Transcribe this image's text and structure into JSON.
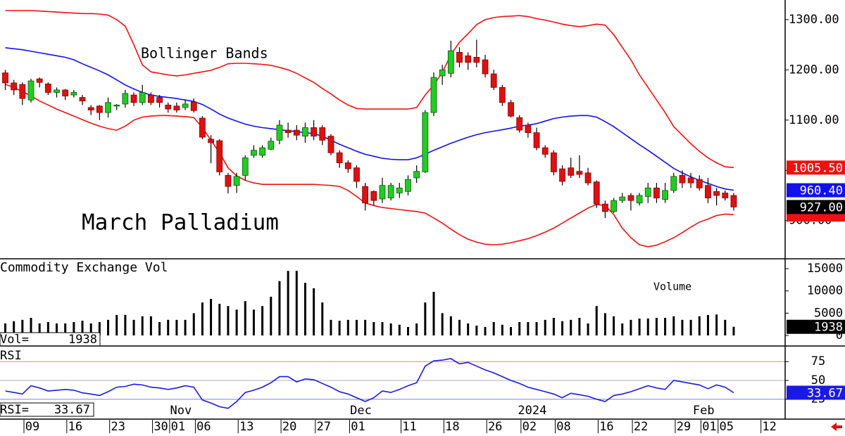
{
  "chart_data": [
    {
      "type": "candlestick",
      "title": "March Palladium",
      "annotation": "Bollinger Bands",
      "up_color": "#22cc22",
      "down_color": "#dd1111",
      "close_label": "927.00",
      "close_label_color": "#000000",
      "open": [
        1194,
        1174,
        1171,
        1140,
        1182,
        1172,
        1155,
        1160,
        1150,
        1145,
        1125,
        1128,
        1115,
        1130,
        1132,
        1150,
        1135,
        1150,
        1145,
        1130,
        1128,
        1125,
        1136,
        1104,
        1062,
        1059,
        990,
        970,
        990,
        1030,
        1030,
        1042,
        1060,
        1080,
        1080,
        1068,
        1085,
        1085,
        1068,
        1035,
        1015,
        1005,
        968,
        958,
        943,
        945,
        955,
        958,
        985,
        997,
        1115,
        1188,
        1193,
        1235,
        1228,
        1225,
        1220,
        1192,
        1165,
        1135,
        1105,
        1090,
        1075,
        1045,
        1035,
        1003,
        1005,
        998,
        995,
        977,
        933,
        918,
        940,
        950,
        935,
        948,
        965,
        942,
        960,
        990,
        985,
        982,
        970,
        958,
        955,
        950,
        null,
        null,
        null,
        null
      ],
      "high": [
        1200,
        1180,
        1175,
        1182,
        1185,
        1175,
        1165,
        1162,
        1160,
        1150,
        1130,
        1130,
        1145,
        1132,
        1160,
        1155,
        1170,
        1155,
        1150,
        1135,
        1135,
        1140,
        1143,
        1108,
        1070,
        1062,
        995,
        995,
        1030,
        1050,
        1050,
        1065,
        1100,
        1095,
        1090,
        1095,
        1100,
        1090,
        1072,
        1040,
        1020,
        1010,
        975,
        960,
        985,
        975,
        975,
        990,
        1010,
        1120,
        1195,
        1210,
        1258,
        1245,
        1235,
        1260,
        1230,
        1200,
        1170,
        1140,
        1110,
        1095,
        1085,
        1050,
        1040,
        1010,
        1025,
        1030,
        1005,
        980,
        940,
        945,
        955,
        955,
        955,
        975,
        975,
        975,
        995,
        1000,
        995,
        990,
        985,
        965,
        960,
        955,
        null,
        null,
        null,
        null
      ],
      "low": [
        1160,
        1150,
        1130,
        1135,
        1165,
        1150,
        1145,
        1140,
        1145,
        1130,
        1110,
        1100,
        1105,
        1120,
        1125,
        1128,
        1130,
        1130,
        1125,
        1115,
        1115,
        1120,
        1115,
        1062,
        1014,
        990,
        954,
        955,
        980,
        1025,
        1025,
        1040,
        1052,
        1065,
        1060,
        1055,
        1060,
        1050,
        1030,
        1005,
        995,
        965,
        920,
        930,
        935,
        940,
        945,
        950,
        975,
        995,
        1108,
        1170,
        1185,
        1205,
        1200,
        1205,
        1185,
        1160,
        1128,
        1105,
        1075,
        1065,
        1040,
        1025,
        990,
        970,
        985,
        985,
        970,
        925,
        905,
        915,
        935,
        920,
        930,
        935,
        935,
        935,
        955,
        965,
        965,
        960,
        935,
        930,
        940,
        920,
        null,
        null,
        null,
        null
      ],
      "close": [
        1174,
        1160,
        1143,
        1178,
        1175,
        1155,
        1160,
        1148,
        1155,
        1138,
        1120,
        1115,
        1135,
        1130,
        1153,
        1135,
        1155,
        1135,
        1135,
        1122,
        1120,
        1132,
        1119,
        1066,
        1055,
        997,
        968,
        988,
        1025,
        1040,
        1045,
        1058,
        1090,
        1075,
        1070,
        1085,
        1068,
        1060,
        1035,
        1015,
        1003,
        978,
        935,
        940,
        970,
        970,
        965,
        982,
        998,
        1115,
        1185,
        1200,
        1238,
        1215,
        1215,
        1215,
        1192,
        1165,
        1135,
        1108,
        1080,
        1075,
        1045,
        1032,
        997,
        978,
        990,
        992,
        975,
        933,
        918,
        940,
        947,
        940,
        950,
        965,
        945,
        960,
        988,
        975,
        975,
        965,
        945,
        950,
        945,
        927,
        null,
        null,
        null,
        null
      ],
      "bands": [
        {
          "color": "#ee1111",
          "value_label": "1005.50",
          "values": [
            1318,
            1318,
            1318,
            1318,
            1317,
            1316,
            1315,
            1314,
            1313,
            1312,
            1312,
            1311,
            1309,
            1300,
            1287,
            1250,
            1210,
            1196,
            1193,
            1190,
            1188,
            1190,
            1193,
            1196,
            1199,
            1205,
            1212,
            1213,
            1213,
            1212,
            1211,
            1209,
            1205,
            1200,
            1193,
            1184,
            1175,
            1163,
            1152,
            1140,
            1130,
            1123,
            1122,
            1122,
            1122,
            1122,
            1122,
            1122,
            1125,
            1150,
            1170,
            1195,
            1230,
            1255,
            1272,
            1290,
            1300,
            1304,
            1306,
            1307,
            1308,
            1306,
            1302,
            1299,
            1295,
            1291,
            1288,
            1286,
            1288,
            1291,
            1289,
            1270,
            1245,
            1220,
            1190,
            1165,
            1140,
            1115,
            1087,
            1070,
            1053,
            1038,
            1025,
            1015,
            1007,
            1005.5,
            null,
            null,
            null,
            null
          ]
        },
        {
          "color": "#1111ee",
          "value_label": "960.40",
          "values": [
            1244,
            1242,
            1240,
            1237,
            1234,
            1231,
            1228,
            1225,
            1220,
            1212,
            1205,
            1198,
            1190,
            1180,
            1170,
            1162,
            1155,
            1150,
            1147,
            1145,
            1143,
            1140,
            1137,
            1131,
            1122,
            1112,
            1104,
            1098,
            1092,
            1088,
            1085,
            1083,
            1081,
            1079,
            1077,
            1075,
            1073,
            1068,
            1060,
            1052,
            1045,
            1038,
            1032,
            1028,
            1024,
            1022,
            1021,
            1021,
            1025,
            1032,
            1040,
            1047,
            1054,
            1060,
            1066,
            1071,
            1075,
            1078,
            1081,
            1084,
            1088,
            1090,
            1093,
            1098,
            1103,
            1106,
            1108,
            1109,
            1109,
            1106,
            1097,
            1087,
            1075,
            1063,
            1051,
            1040,
            1028,
            1016,
            1004,
            995,
            987,
            980,
            974,
            968,
            963,
            960.4,
            null,
            null,
            null,
            null
          ]
        },
        {
          "color": "#ee1111",
          "values": [
            1171,
            1165,
            1157,
            1148,
            1138,
            1130,
            1122,
            1115,
            1108,
            1101,
            1094,
            1088,
            1083,
            1080,
            1088,
            1100,
            1106,
            1108,
            1109,
            1109,
            1108,
            1107,
            1105,
            1085,
            1060,
            1035,
            1005,
            989,
            980,
            975,
            972,
            972,
            972,
            972,
            972,
            972,
            972,
            971,
            970,
            968,
            960,
            948,
            935,
            930,
            926,
            924,
            922,
            920,
            918,
            915,
            905,
            895,
            883,
            872,
            863,
            857,
            853,
            852,
            853,
            856,
            860,
            864,
            870,
            877,
            885,
            895,
            905,
            915,
            925,
            932,
            930,
            912,
            885,
            866,
            852,
            848,
            851,
            858,
            866,
            876,
            887,
            897,
            903,
            910,
            913,
            912,
            null,
            null,
            null,
            null
          ]
        }
      ],
      "ylim": [
        824,
        1339
      ],
      "yticks": [
        {
          "value": 1300,
          "label": "1300.00"
        },
        {
          "value": 1200,
          "label": "1200.00"
        },
        {
          "value": 1100,
          "label": "1100.00"
        },
        {
          "value": 1000,
          "label": "1000.00"
        },
        {
          "value": 900,
          "label": "900.00"
        }
      ]
    },
    {
      "type": "bar",
      "title": "Commodity Exchange Vol",
      "annotation": "Volume",
      "label_prefix": "Vol=",
      "color": "#000000",
      "value_box_color": "#000000",
      "values": [
        2700,
        3200,
        3500,
        3950,
        2700,
        3000,
        2700,
        2700,
        3000,
        3300,
        2700,
        3000,
        3500,
        4600,
        4600,
        3500,
        4300,
        4300,
        3000,
        3500,
        3500,
        3500,
        5000,
        7400,
        8200,
        7100,
        6600,
        5800,
        7700,
        5800,
        6600,
        8700,
        12200,
        14500,
        14500,
        11800,
        10600,
        7400,
        3500,
        3300,
        3500,
        3500,
        3500,
        3000,
        3000,
        2700,
        2400,
        1900,
        2700,
        7400,
        9800,
        5000,
        4300,
        3500,
        2700,
        2200,
        1900,
        3000,
        2400,
        1900,
        3000,
        3000,
        3000,
        3500,
        3950,
        3200,
        3500,
        3950,
        2700,
        6600,
        5000,
        4300,
        2700,
        3500,
        3800,
        3800,
        3950,
        3950,
        4300,
        3500,
        3500,
        4300,
        4600,
        4700,
        3500,
        1938,
        null,
        null,
        null,
        null
      ],
      "ylim": [
        -2370,
        16900
      ],
      "yticks": [
        15000,
        10000,
        5000,
        0
      ]
    },
    {
      "type": "line",
      "title": "RSI",
      "label_prefix": "RSI=",
      "color": "#1a1ae6",
      "value_box_color": "#1a1ae6",
      "ref_line_colors": [
        "#f08080",
        "#b0b0b0",
        "#8080f0"
      ],
      "values": [
        36,
        34,
        32,
        43,
        40,
        36,
        37,
        38,
        37,
        33.5,
        32,
        30,
        35,
        41,
        42,
        45,
        44,
        41,
        40,
        38,
        40,
        43,
        41,
        24,
        20,
        15,
        13,
        22,
        34,
        37,
        41,
        47,
        55,
        55,
        48,
        52,
        51,
        46,
        41,
        35,
        32,
        27,
        22,
        27,
        36,
        34,
        38,
        43,
        47,
        69,
        76,
        77,
        79,
        72,
        74,
        69,
        64,
        60,
        55,
        50,
        46,
        41,
        38,
        35,
        32,
        27,
        33,
        31,
        29,
        25,
        22,
        30,
        32,
        35,
        39,
        43,
        40,
        38,
        50,
        48,
        46,
        44,
        39,
        44,
        41,
        33.67,
        null,
        null,
        null,
        null
      ],
      "ylim": [
        -1.4,
        93.9
      ],
      "yticks": [
        75,
        50,
        25
      ],
      "categories": [
        null,
        null,
        null,
        "09",
        null,
        null,
        null,
        null,
        "16",
        null,
        null,
        null,
        null,
        "23",
        null,
        null,
        null,
        null,
        "30",
        null,
        "01",
        null,
        null,
        "06",
        null,
        null,
        null,
        null,
        "13",
        null,
        null,
        null,
        null,
        "20",
        null,
        null,
        null,
        "27",
        null,
        null,
        null,
        "01",
        null,
        null,
        null,
        null,
        null,
        "11",
        null,
        null,
        null,
        null,
        "18",
        null,
        null,
        null,
        null,
        "26",
        null,
        null,
        null,
        "02",
        null,
        null,
        null,
        "08",
        null,
        null,
        null,
        null,
        "16",
        null,
        null,
        null,
        "22",
        null,
        null,
        null,
        null,
        "29",
        null,
        null,
        "01",
        null,
        "05",
        null,
        null,
        null,
        null,
        "12"
      ],
      "month_categories": [
        null,
        null,
        null,
        null,
        null,
        null,
        null,
        null,
        null,
        null,
        null,
        null,
        null,
        null,
        null,
        null,
        null,
        null,
        null,
        null,
        "Nov",
        null,
        null,
        null,
        null,
        null,
        null,
        null,
        null,
        null,
        null,
        null,
        null,
        null,
        null,
        null,
        null,
        null,
        null,
        null,
        null,
        "Dec",
        null,
        null,
        null,
        null,
        null,
        null,
        null,
        null,
        null,
        null,
        null,
        null,
        null,
        null,
        null,
        null,
        null,
        null,
        null,
        "2024",
        null,
        null,
        null,
        null,
        null,
        null,
        null,
        null,
        null,
        null,
        null,
        null,
        null,
        null,
        null,
        null,
        null,
        null,
        null,
        "Feb",
        null,
        null,
        null,
        null,
        null,
        null,
        null
      ]
    }
  ]
}
